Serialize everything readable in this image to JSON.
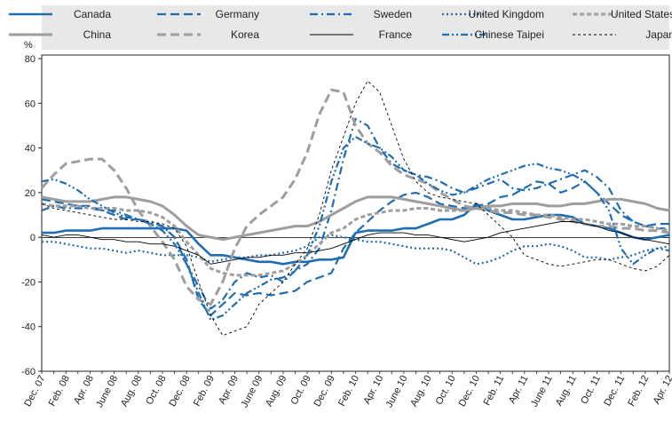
{
  "chart_data": {
    "type": "line",
    "ylabel": "%",
    "ylim": [
      -60,
      80
    ],
    "yticks": [
      -60,
      -40,
      -20,
      0,
      20,
      40,
      60,
      80
    ],
    "grid": false,
    "legend_position": "top",
    "categories": [
      "Dec. 07",
      "Jan. 08",
      "Feb. 08",
      "Mar. 08",
      "Apr. 08",
      "May 08",
      "June 08",
      "July 08",
      "Aug. 08",
      "Sep. 08",
      "Oct. 08",
      "Nov. 08",
      "Dec. 08",
      "Jan. 09",
      "Feb. 09",
      "Mar. 09",
      "Apr. 09",
      "May 09",
      "June 09",
      "July 09",
      "Aug. 09",
      "Sep. 09",
      "Oct. 09",
      "Nov. 09",
      "Dec. 09",
      "Jan. 10",
      "Feb. 10",
      "Mar. 10",
      "Apr. 10",
      "May 10",
      "June 10",
      "July 10",
      "Aug. 10",
      "Sep. 10",
      "Oct. 10",
      "Nov. 10",
      "Dec. 10",
      "Jan. 11",
      "Feb. 11",
      "Mar. 11",
      "Apr. 11",
      "May 11",
      "June 11",
      "July 11",
      "Aug. 11",
      "Sep. 11",
      "Oct. 11",
      "Nov. 11",
      "Dec. 11",
      "Jan. 12",
      "Feb. 12",
      "Mar. 12",
      "Apr. 12"
    ],
    "tick_labels": [
      "Dec. 07",
      "Feb. 08",
      "Apr. 08",
      "June 08",
      "Aug. 08",
      "Oct. 08",
      "Dec. 08",
      "Feb. 09",
      "Apr. 09",
      "June 09",
      "Aug. 09",
      "Oct. 09",
      "Dec. 09",
      "Feb. 10",
      "Apr. 10",
      "June 10",
      "Aug. 10",
      "Oct. 10",
      "Dec. 10",
      "Feb. 11",
      "Apr. 11",
      "June 11",
      "Aug. 11",
      "Oct. 11",
      "Dec. 11",
      "Feb. 12",
      "Apr. 12"
    ],
    "series": [
      {
        "name": "Canada",
        "color": "#1f6db2",
        "style": "solid",
        "width": 2.6,
        "values": [
          2,
          2,
          3,
          3,
          3,
          4,
          4,
          4,
          4,
          4,
          4,
          4,
          3,
          -3,
          -8,
          -8,
          -9,
          -10,
          -11,
          -11,
          -12,
          -11,
          -11,
          -10,
          -10,
          -9,
          2,
          3,
          3,
          3,
          4,
          4,
          6,
          8,
          8,
          10,
          15,
          12,
          10,
          8,
          8,
          9,
          10,
          10,
          9,
          6,
          5,
          4,
          2,
          0,
          -1,
          0,
          1
        ]
      },
      {
        "name": "Germany",
        "color": "#1f6db2",
        "style": "longdash",
        "width": 2.2,
        "values": [
          17,
          16,
          15,
          14,
          14,
          12,
          10,
          8,
          8,
          6,
          5,
          0,
          -10,
          -28,
          -35,
          -30,
          -25,
          -26,
          -25,
          -26,
          -25,
          -24,
          -20,
          -18,
          -16,
          -5,
          2,
          7,
          12,
          16,
          19,
          20,
          18,
          15,
          14,
          13,
          14,
          15,
          18,
          19,
          22,
          25,
          24,
          20,
          22,
          25,
          20,
          15,
          10,
          7,
          5,
          6,
          6
        ]
      },
      {
        "name": "Sweden",
        "color": "#1f6db2",
        "style": "dashdot",
        "width": 2.2,
        "values": [
          12,
          14,
          13,
          13,
          13,
          12,
          12,
          10,
          8,
          7,
          5,
          0,
          -12,
          -22,
          -32,
          -28,
          -20,
          -16,
          -18,
          -17,
          -20,
          -15,
          -12,
          -5,
          12,
          35,
          53,
          50,
          40,
          33,
          30,
          28,
          27,
          25,
          22,
          20,
          22,
          24,
          26,
          22,
          21,
          22,
          24,
          26,
          28,
          30,
          27,
          22,
          12,
          7,
          5,
          4,
          4
        ]
      },
      {
        "name": "United Kingdom",
        "color": "#1f6db2",
        "style": "dotted",
        "width": 2.2,
        "values": [
          -2,
          -2,
          -3,
          -4,
          -5,
          -5,
          -6,
          -7,
          -6,
          -7,
          -8,
          -8,
          -8,
          -9,
          -11,
          -10,
          -9,
          -9,
          -8,
          -8,
          -7,
          -6,
          -4,
          0,
          1,
          0,
          -1,
          -2,
          -2,
          -3,
          -4,
          -5,
          -5,
          -5,
          -6,
          -9,
          -12,
          -11,
          -9,
          -6,
          -4,
          -4,
          -3,
          -4,
          -6,
          -9,
          -9,
          -10,
          -9,
          -8,
          -6,
          -5,
          -4
        ]
      },
      {
        "name": "United States",
        "color": "#9e9e9e",
        "style": "shortdash",
        "width": 3.0,
        "values": [
          15,
          14,
          14,
          14,
          13,
          13,
          13,
          12,
          12,
          11,
          9,
          5,
          -2,
          -8,
          -14,
          -16,
          -17,
          -17,
          -17,
          -16,
          -15,
          -12,
          -8,
          -3,
          2,
          4,
          8,
          10,
          11,
          12,
          12,
          13,
          13,
          12,
          12,
          12,
          13,
          13,
          12,
          12,
          11,
          10,
          10,
          9,
          8,
          8,
          7,
          6,
          6,
          5,
          5,
          4,
          3
        ]
      },
      {
        "name": "China",
        "color": "#9e9e9e",
        "style": "solid",
        "width": 3.0,
        "values": [
          18,
          17,
          16,
          16,
          16,
          17,
          18,
          18,
          17,
          16,
          14,
          10,
          5,
          1,
          0,
          -1,
          0,
          1,
          2,
          3,
          4,
          5,
          5,
          7,
          10,
          13,
          16,
          18,
          18,
          18,
          17,
          16,
          15,
          14,
          13,
          12,
          13,
          14,
          14,
          15,
          15,
          15,
          14,
          14,
          15,
          15,
          16,
          17,
          17,
          16,
          15,
          13,
          12
        ]
      },
      {
        "name": "Korea",
        "color": "#9e9e9e",
        "style": "longdash",
        "width": 3.0,
        "values": [
          22,
          28,
          33,
          34,
          35,
          35,
          30,
          22,
          12,
          5,
          -2,
          -10,
          -22,
          -28,
          -30,
          -20,
          -5,
          5,
          10,
          14,
          18,
          26,
          38,
          55,
          66,
          65,
          50,
          42,
          38,
          32,
          28,
          26,
          24,
          20,
          17,
          14,
          13,
          12,
          11,
          11,
          10,
          10,
          9,
          8,
          7,
          6,
          5,
          5,
          4,
          4,
          3,
          3,
          2
        ]
      },
      {
        "name": "France",
        "color": "#000000",
        "style": "solid",
        "width": 0.9,
        "values": [
          1,
          0,
          1,
          1,
          0,
          -1,
          -1,
          -2,
          -2,
          -3,
          -3,
          -4,
          -6,
          -8,
          -12,
          -11,
          -10,
          -9,
          -9,
          -8,
          -8,
          -7,
          -7,
          -6,
          -5,
          -3,
          -1,
          1,
          2,
          2,
          2,
          1,
          1,
          0,
          -1,
          -2,
          -1,
          0,
          2,
          3,
          4,
          5,
          6,
          7,
          7,
          6,
          5,
          3,
          2,
          0,
          -1,
          -2,
          -3
        ]
      },
      {
        "name": "Chinese Taipei",
        "color": "#1f6db2",
        "style": "dashdotdot",
        "width": 2.2,
        "values": [
          25,
          26,
          24,
          21,
          17,
          14,
          11,
          9,
          8,
          6,
          3,
          -3,
          -12,
          -25,
          -37,
          -35,
          -30,
          -25,
          -22,
          -19,
          -18,
          -15,
          -8,
          5,
          25,
          40,
          45,
          42,
          40,
          36,
          30,
          28,
          24,
          21,
          19,
          20,
          23,
          26,
          28,
          30,
          32,
          33,
          31,
          30,
          28,
          25,
          20,
          12,
          -5,
          -12,
          -8,
          -5,
          -6
        ]
      },
      {
        "name": "Japan",
        "color": "#000000",
        "style": "finedash",
        "width": 0.9,
        "values": [
          15,
          13,
          12,
          11,
          10,
          9,
          8,
          8,
          7,
          7,
          6,
          4,
          -4,
          -20,
          -35,
          -44,
          -42,
          -40,
          -30,
          -25,
          -20,
          -12,
          -5,
          10,
          30,
          45,
          60,
          70,
          65,
          50,
          35,
          25,
          20,
          18,
          17,
          16,
          15,
          10,
          5,
          0,
          -8,
          -10,
          -12,
          -13,
          -12,
          -11,
          -10,
          -10,
          -12,
          -14,
          -15,
          -13,
          -8
        ]
      }
    ]
  }
}
